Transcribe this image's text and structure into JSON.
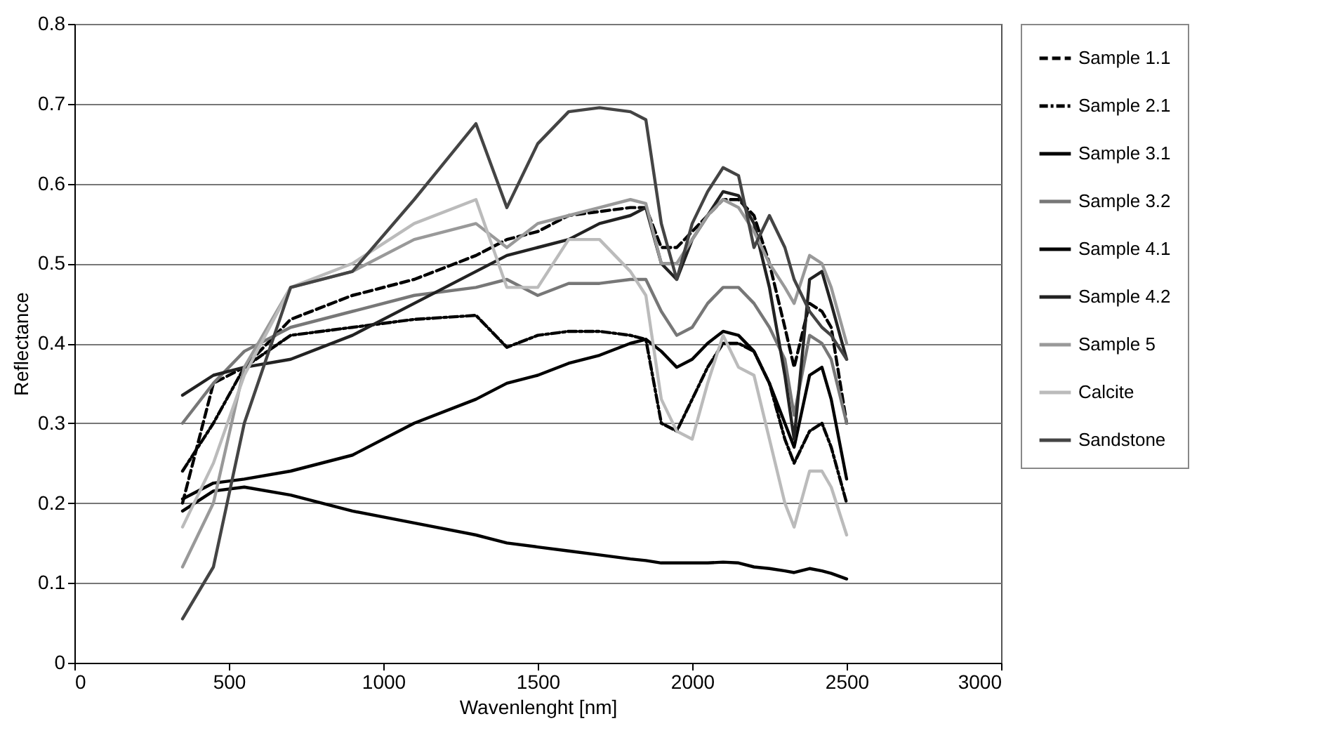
{
  "chart_data": {
    "type": "line",
    "xlabel": "Wavenlenght [nm]",
    "ylabel": "Reflectance",
    "xlim": [
      0,
      3000
    ],
    "xticks": [
      0,
      500,
      1000,
      1500,
      2000,
      2500,
      3000
    ],
    "ylim": [
      0,
      0.8
    ],
    "yticks": [
      0,
      0.1,
      0.2,
      0.3,
      0.4,
      0.5,
      0.6,
      0.7,
      0.8
    ],
    "grid": "y",
    "legend": "right",
    "x": [
      350,
      450,
      550,
      700,
      900,
      1100,
      1300,
      1400,
      1500,
      1600,
      1700,
      1800,
      1850,
      1900,
      1950,
      2000,
      2050,
      2100,
      2150,
      2200,
      2250,
      2300,
      2330,
      2380,
      2420,
      2450,
      2500
    ],
    "series": [
      {
        "name": "Sample 1.1",
        "color": "#000000",
        "line_style": "dashed",
        "values": [
          0.2,
          0.35,
          0.37,
          0.43,
          0.46,
          0.48,
          0.51,
          0.53,
          0.54,
          0.56,
          0.565,
          0.57,
          0.57,
          0.52,
          0.52,
          0.54,
          0.56,
          0.58,
          0.58,
          0.56,
          0.5,
          0.42,
          0.37,
          0.45,
          0.44,
          0.42,
          0.3
        ]
      },
      {
        "name": "Sample 2.1",
        "color": "#000000",
        "line_style": "dotted",
        "values": [
          0.24,
          0.3,
          0.37,
          0.41,
          0.42,
          0.43,
          0.435,
          0.395,
          0.41,
          0.415,
          0.415,
          0.41,
          0.405,
          0.3,
          0.29,
          0.33,
          0.37,
          0.4,
          0.4,
          0.39,
          0.35,
          0.28,
          0.25,
          0.29,
          0.3,
          0.27,
          0.2
        ]
      },
      {
        "name": "Sample 3.1",
        "color": "#000000",
        "line_style": "solid",
        "values": [
          0.19,
          0.215,
          0.22,
          0.21,
          0.19,
          0.175,
          0.16,
          0.15,
          0.145,
          0.14,
          0.135,
          0.13,
          0.128,
          0.125,
          0.125,
          0.125,
          0.125,
          0.126,
          0.125,
          0.12,
          0.118,
          0.115,
          0.113,
          0.118,
          0.115,
          0.112,
          0.105
        ]
      },
      {
        "name": "Sample 3.2",
        "color": "#777777",
        "line_style": "solid",
        "values": [
          0.3,
          0.35,
          0.39,
          0.42,
          0.44,
          0.46,
          0.47,
          0.48,
          0.46,
          0.475,
          0.475,
          0.48,
          0.48,
          0.44,
          0.41,
          0.42,
          0.45,
          0.47,
          0.47,
          0.45,
          0.42,
          0.38,
          0.31,
          0.41,
          0.4,
          0.38,
          0.3
        ]
      },
      {
        "name": "Sample 4.1",
        "color": "#000000",
        "line_style": "solid",
        "values": [
          0.205,
          0.225,
          0.23,
          0.24,
          0.26,
          0.3,
          0.33,
          0.35,
          0.36,
          0.375,
          0.385,
          0.4,
          0.405,
          0.39,
          0.37,
          0.38,
          0.4,
          0.415,
          0.41,
          0.39,
          0.35,
          0.3,
          0.27,
          0.36,
          0.37,
          0.33,
          0.23
        ]
      },
      {
        "name": "Sample 4.2",
        "color": "#222222",
        "line_style": "solid",
        "values": [
          0.335,
          0.36,
          0.37,
          0.38,
          0.41,
          0.45,
          0.49,
          0.51,
          0.52,
          0.53,
          0.55,
          0.56,
          0.57,
          0.5,
          0.48,
          0.53,
          0.56,
          0.59,
          0.585,
          0.55,
          0.47,
          0.36,
          0.28,
          0.48,
          0.49,
          0.45,
          0.38
        ]
      },
      {
        "name": "Sample 5",
        "color": "#999999",
        "line_style": "solid",
        "values": [
          0.12,
          0.2,
          0.37,
          0.47,
          0.49,
          0.53,
          0.55,
          0.52,
          0.55,
          0.56,
          0.57,
          0.58,
          0.575,
          0.5,
          0.5,
          0.53,
          0.56,
          0.58,
          0.57,
          0.54,
          0.5,
          0.47,
          0.45,
          0.51,
          0.5,
          0.47,
          0.4
        ]
      },
      {
        "name": "Calcite",
        "color": "#bbbbbb",
        "line_style": "solid",
        "values": [
          0.17,
          0.25,
          0.36,
          0.47,
          0.5,
          0.55,
          0.58,
          0.47,
          0.47,
          0.53,
          0.53,
          0.49,
          0.46,
          0.33,
          0.29,
          0.28,
          0.35,
          0.41,
          0.37,
          0.36,
          0.28,
          0.2,
          0.17,
          0.24,
          0.24,
          0.22,
          0.16
        ]
      },
      {
        "name": "Sandstone",
        "color": "#444444",
        "line_style": "solid",
        "values": [
          0.055,
          0.12,
          0.3,
          0.47,
          0.49,
          0.58,
          0.675,
          0.57,
          0.65,
          0.69,
          0.695,
          0.69,
          0.68,
          0.55,
          0.48,
          0.55,
          0.59,
          0.62,
          0.61,
          0.52,
          0.56,
          0.52,
          0.48,
          0.44,
          0.42,
          0.41,
          0.38
        ]
      }
    ]
  }
}
